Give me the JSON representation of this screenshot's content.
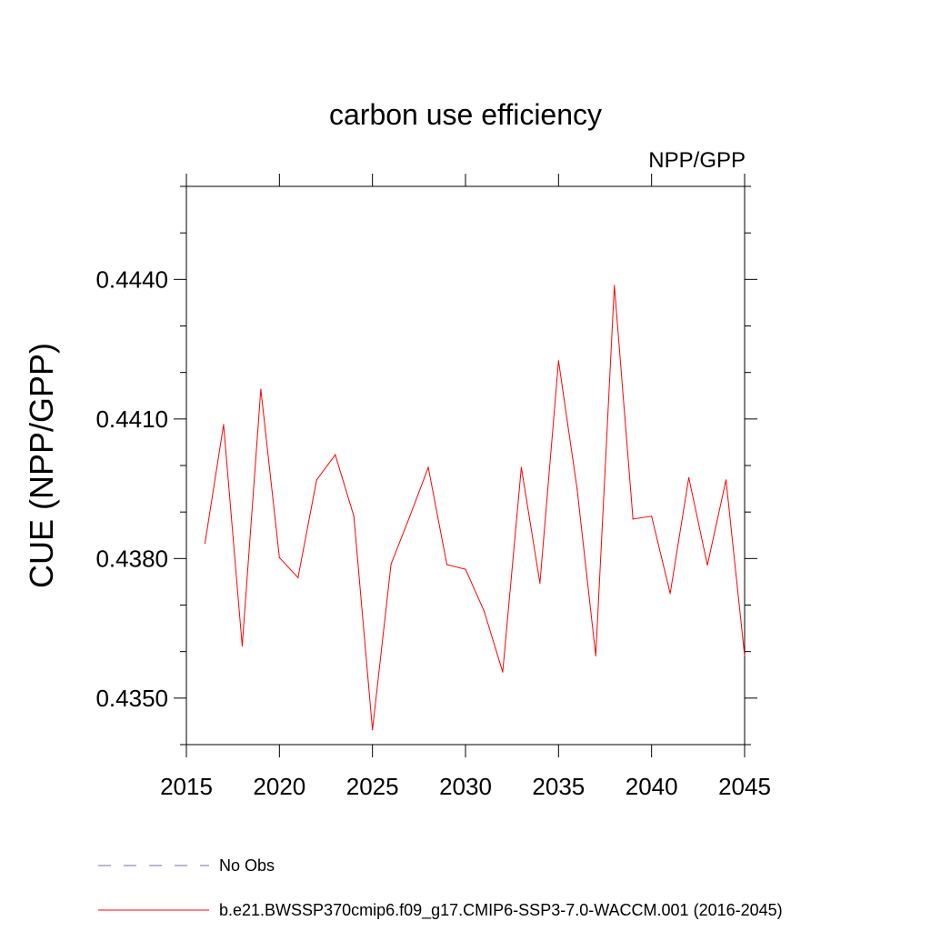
{
  "chart_data": {
    "type": "line",
    "title": "carbon use efficiency",
    "subtitle": "NPP/GPP",
    "xlabel": "",
    "ylabel": "CUE  (NPP/GPP)",
    "xlim": [
      2015,
      2045
    ],
    "ylim": [
      0.434,
      0.446
    ],
    "xticks": [
      2015,
      2020,
      2025,
      2030,
      2035,
      2040,
      2045
    ],
    "xtick_labels": [
      "2015",
      "2020",
      "2025",
      "2030",
      "2035",
      "2040",
      "2045"
    ],
    "yticks": [
      0.435,
      0.438,
      0.441,
      0.444
    ],
    "ytick_labels": [
      "0.4350",
      "0.4380",
      "0.4410",
      "0.4440"
    ],
    "grid": false,
    "legend_position": "bottom",
    "x": [
      2016,
      2017,
      2018,
      2019,
      2020,
      2021,
      2022,
      2023,
      2024,
      2025,
      2026,
      2027,
      2028,
      2029,
      2030,
      2031,
      2032,
      2033,
      2034,
      2035,
      2036,
      2037,
      2038,
      2039,
      2040,
      2041,
      2042,
      2043,
      2044,
      2045
    ],
    "series": [
      {
        "name": "b.e21.BWSSP370cmip6.f09_g17.CMIP6-SSP3-7.0-WACCM.001 (2016-2045)",
        "color": "#ff0000",
        "style": "solid",
        "values": [
          0.43833,
          0.44088,
          0.43612,
          0.44164,
          0.43802,
          0.43759,
          0.43969,
          0.44023,
          0.43891,
          0.43432,
          0.43788,
          0.4389,
          0.43996,
          0.43787,
          0.43777,
          0.43687,
          0.43556,
          0.43996,
          0.43747,
          0.44225,
          0.43949,
          0.43591,
          0.44387,
          0.43885,
          0.43891,
          0.43725,
          0.43974,
          0.43786,
          0.43969,
          0.43591
        ]
      }
    ],
    "legend": [
      {
        "label": "No Obs",
        "color": "#7b6fb0",
        "style": "dashed"
      },
      {
        "label": "b.e21.BWSSP370cmip6.f09_g17.CMIP6-SSP3-7.0-WACCM.001 (2016-2045)",
        "color": "#ff0000",
        "style": "solid"
      }
    ]
  }
}
